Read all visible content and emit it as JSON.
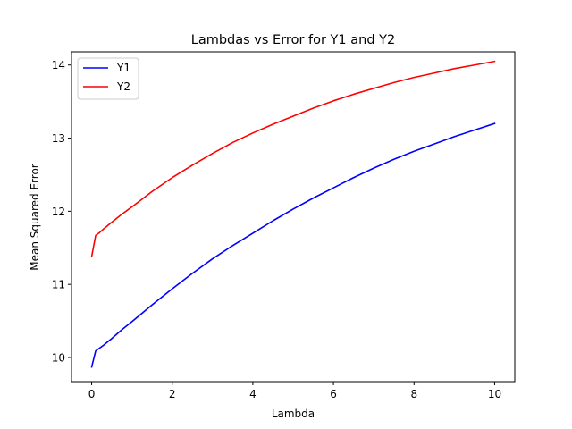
{
  "chart_data": {
    "type": "line",
    "title": "Lambdas vs Error for Y1 and Y2",
    "xlabel": "Lambda",
    "ylabel": "Mean Squared Error",
    "xlim": [
      -0.5,
      10.5
    ],
    "ylim": [
      9.67,
      14.18
    ],
    "xticks": [
      0,
      2,
      4,
      6,
      8,
      10
    ],
    "yticks": [
      10,
      11,
      12,
      13,
      14
    ],
    "grid": false,
    "legend_position": "upper-left",
    "x": [
      0,
      0.1,
      0.2,
      0.3,
      0.5,
      0.75,
      1,
      1.5,
      2,
      2.5,
      3,
      3.5,
      4,
      4.5,
      5,
      5.5,
      6,
      6.5,
      7,
      7.5,
      8,
      8.5,
      9,
      9.5,
      10
    ],
    "series": [
      {
        "name": "Y1",
        "color": "#0000ff",
        "values": [
          9.87,
          10.09,
          10.13,
          10.17,
          10.26,
          10.38,
          10.49,
          10.72,
          10.94,
          11.15,
          11.35,
          11.53,
          11.7,
          11.87,
          12.03,
          12.18,
          12.32,
          12.46,
          12.59,
          12.71,
          12.82,
          12.92,
          13.02,
          13.11,
          13.2
        ]
      },
      {
        "name": "Y2",
        "color": "#ff0000",
        "values": [
          11.38,
          11.67,
          11.71,
          11.76,
          11.85,
          11.96,
          12.06,
          12.27,
          12.46,
          12.63,
          12.79,
          12.94,
          13.07,
          13.19,
          13.3,
          13.41,
          13.51,
          13.6,
          13.68,
          13.76,
          13.83,
          13.89,
          13.95,
          14.0,
          14.05
        ]
      }
    ]
  }
}
